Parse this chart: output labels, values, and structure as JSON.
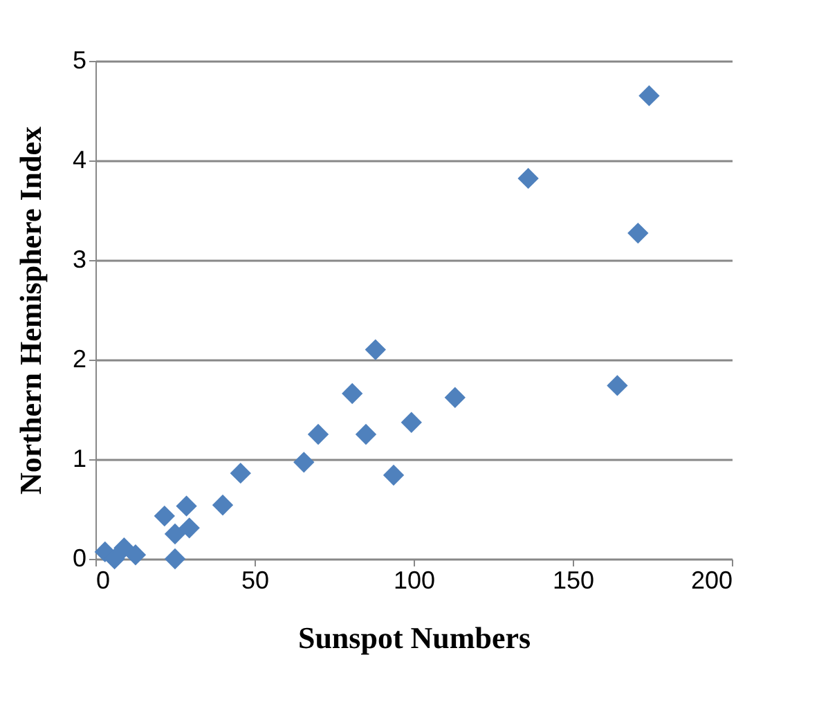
{
  "chart_data": {
    "type": "scatter",
    "xlabel": "Sunspot Numbers",
    "ylabel": "Northern Hemisphere Index",
    "x": [
      3,
      6,
      9,
      12.6,
      21.7,
      25,
      25,
      28.6,
      29.5,
      40,
      45.6,
      65.5,
      70,
      80.7,
      85,
      88,
      93.7,
      99.3,
      113,
      136,
      164,
      170.5,
      174
    ],
    "series": [
      {
        "color": "#4f81bd",
        "values": [
          0.07,
          0,
          0.11,
          0.04,
          0.43,
          0.25,
          0,
          0.53,
          0.31,
          0.54,
          0.86,
          0.97,
          1.25,
          1.66,
          1.25,
          2.1,
          0.84,
          1.37,
          1.62,
          3.82,
          1.74,
          3.27,
          4.65
        ]
      }
    ],
    "xlim": [
      0,
      200
    ],
    "xticks": [
      0,
      50,
      100,
      150,
      200
    ],
    "ylim": [
      0,
      5
    ],
    "yticks": [
      0,
      1,
      2,
      3,
      4,
      5
    ],
    "grid": "y",
    "marker": "diamond"
  }
}
